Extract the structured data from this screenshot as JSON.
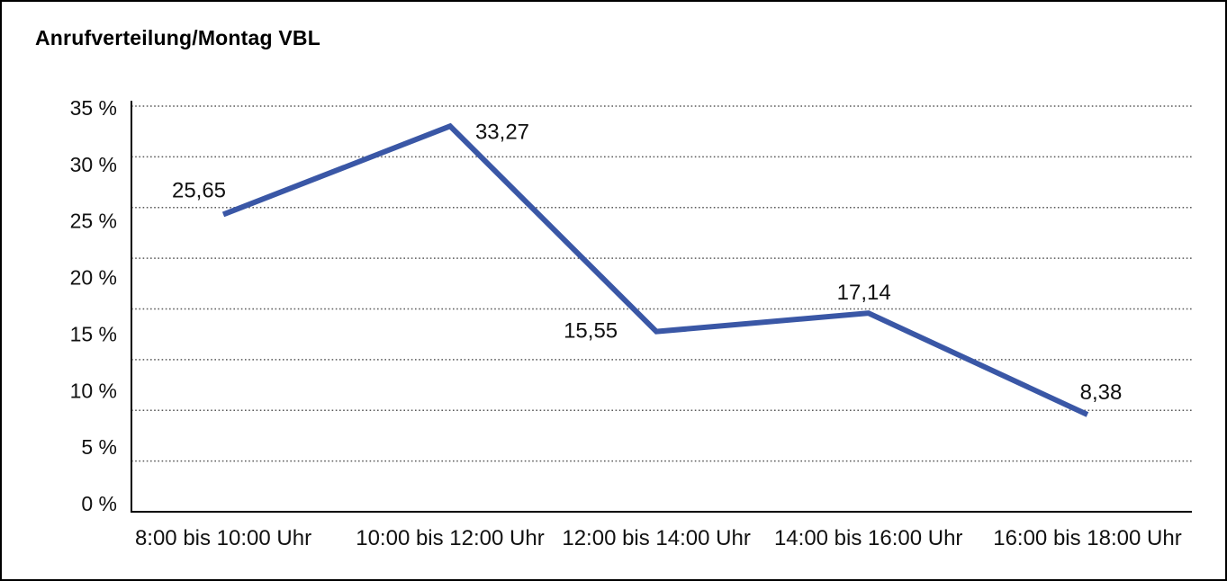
{
  "chart_data": {
    "type": "line",
    "title": "Anrufverteilung/Montag VBL",
    "categories": [
      "8:00 bis 10:00 Uhr",
      "10:00 bis 12:00 Uhr",
      "12:00 bis 14:00 Uhr",
      "14:00 bis 16:00 Uhr",
      "16:00 bis 18:00 Uhr"
    ],
    "values": [
      25.65,
      33.27,
      15.55,
      17.14,
      8.38
    ],
    "data_labels": [
      "25,65",
      "33,27",
      "15,55",
      "17,14",
      "8,38"
    ],
    "y_ticks": [
      "35 %",
      "30 %",
      "25 %",
      "20 %",
      "15 %",
      "10 %",
      "5 %",
      "0 %"
    ],
    "ylim": [
      0,
      35
    ],
    "xlabel": "",
    "ylabel": "",
    "grid": "horizontal-dotted",
    "grid_divisions": 8,
    "legend": "none",
    "line_color": "#3A57A6",
    "axis_color": "#000000",
    "text_color": "#111111",
    "gridline_color": "#5a5a5a",
    "background": "#FFFFFF"
  }
}
